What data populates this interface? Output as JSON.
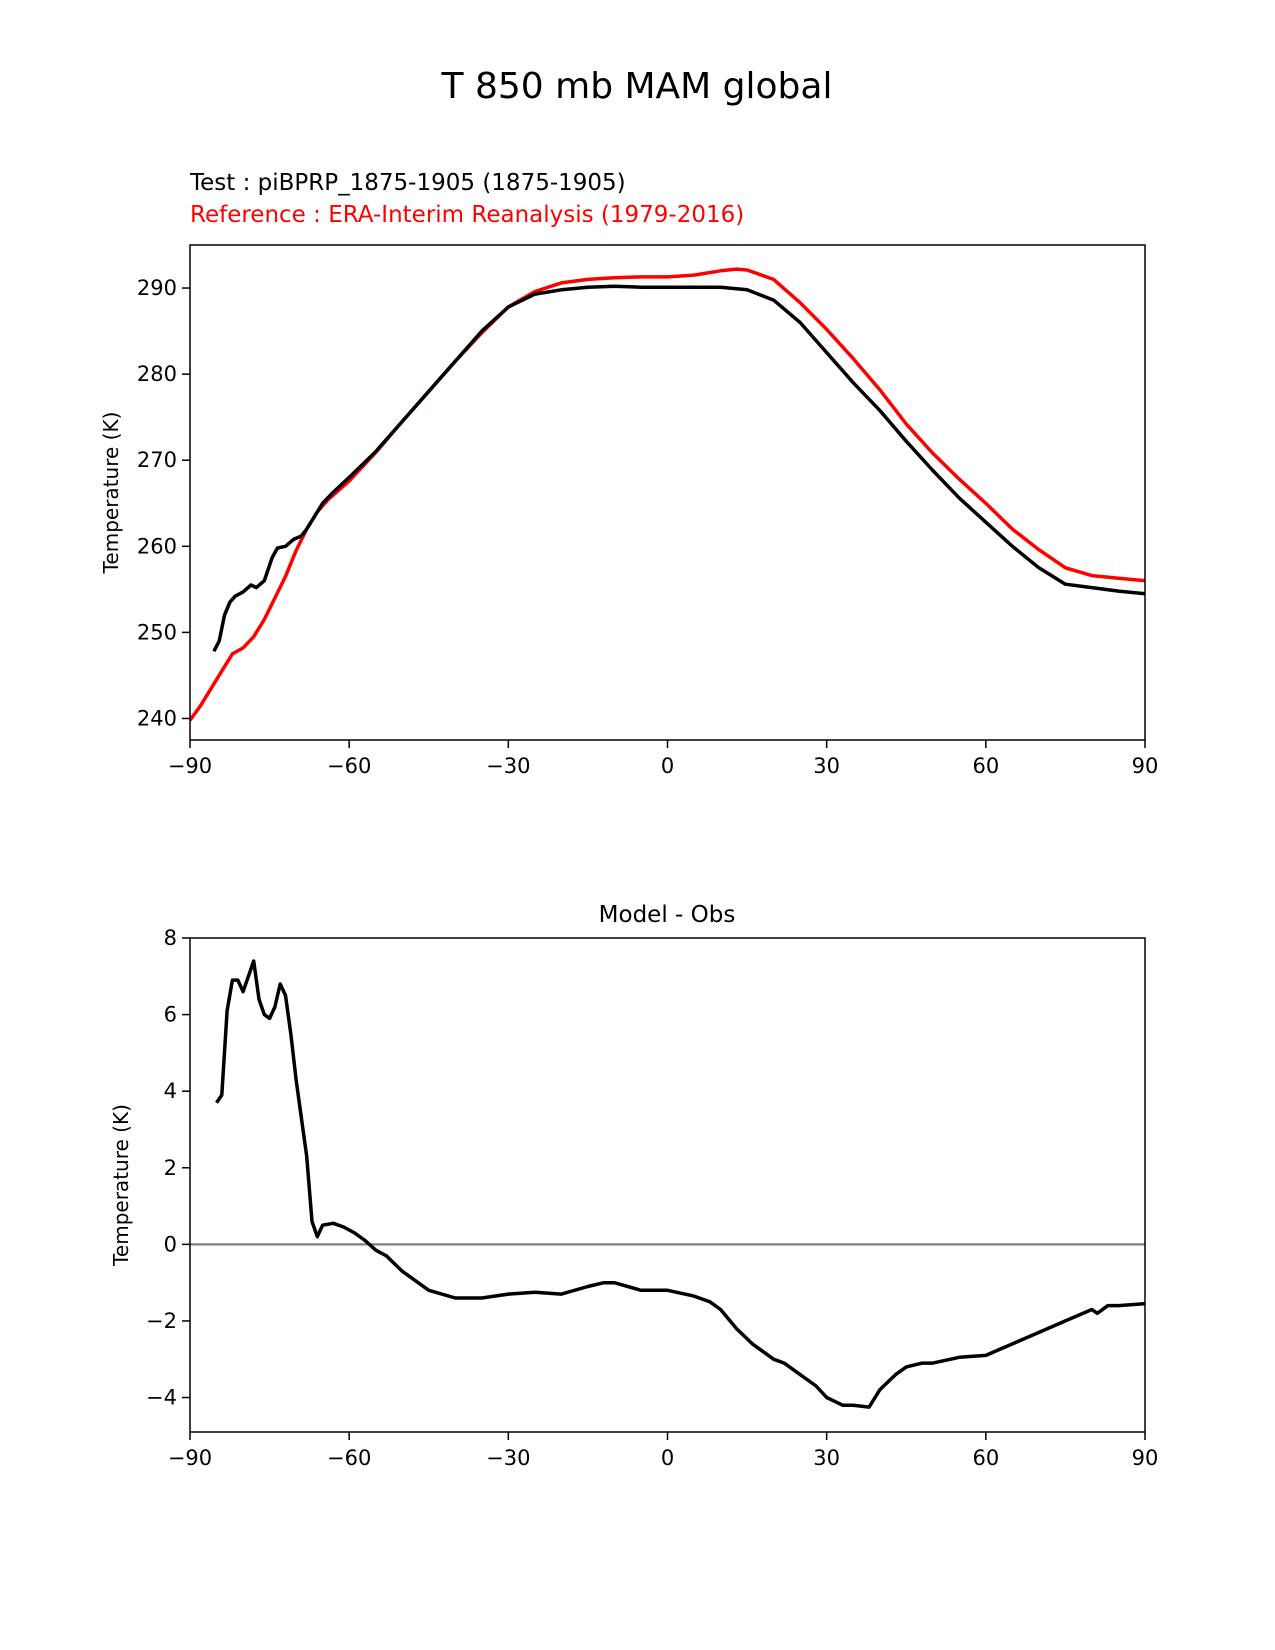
{
  "figure": {
    "title": "T 850 mb MAM global"
  },
  "chart_data": [
    {
      "type": "line",
      "test_label": "Test : piBPRP_1875-1905 (1875-1905)",
      "reference_label": "Reference : ERA-Interim Reanalysis (1979-2016)",
      "xlabel": "",
      "ylabel": "Temperature (K)",
      "xlim": [
        -90,
        90
      ],
      "ylim": [
        237.5,
        295
      ],
      "xticks": [
        -90,
        -60,
        -30,
        0,
        30,
        60,
        90
      ],
      "xtick_labels": [
        "−90",
        "−60",
        "−30",
        "0",
        "30",
        "60",
        "90"
      ],
      "yticks": [
        240,
        250,
        260,
        270,
        280,
        290
      ],
      "ytick_labels": [
        "240",
        "250",
        "260",
        "270",
        "280",
        "290"
      ],
      "colors": {
        "test": "#000000",
        "reference": "#ff0000"
      },
      "series": [
        {
          "name": "Test",
          "color": "#000000",
          "x": [
            -85.5,
            -84.5,
            -83.5,
            -82.5,
            -81.5,
            -80,
            -78.5,
            -77.5,
            -76,
            -74.5,
            -73.5,
            -72,
            -70.5,
            -69,
            -68,
            -67,
            -65,
            -63,
            -60,
            -55,
            -50,
            -45,
            -40,
            -35,
            -30,
            -25,
            -20,
            -15,
            -10,
            -5,
            0,
            5,
            10,
            15,
            20,
            25,
            30,
            35,
            40,
            45,
            50,
            55,
            60,
            65,
            70,
            75,
            80,
            85,
            90
          ],
          "values": [
            247.8,
            249,
            252,
            253.5,
            254.2,
            254.7,
            255.5,
            255.2,
            256,
            258.7,
            259.8,
            260,
            260.8,
            261.2,
            262,
            263,
            265,
            266.3,
            268,
            271,
            274.5,
            278,
            281.5,
            285,
            287.8,
            289.3,
            289.8,
            290.1,
            290.2,
            290.1,
            290.1,
            290.1,
            290.1,
            289.8,
            288.6,
            286,
            282.5,
            279,
            275.8,
            272.2,
            268.8,
            265.6,
            262.8,
            260,
            257.5,
            255.6,
            255.2,
            254.8,
            254.5
          ]
        },
        {
          "name": "Reference",
          "color": "#ff0000",
          "x": [
            -90,
            -88,
            -86,
            -84,
            -82,
            -80,
            -78,
            -76,
            -74,
            -72,
            -70,
            -68,
            -66,
            -64,
            -60,
            -55,
            -50,
            -45,
            -40,
            -35,
            -30,
            -25,
            -20,
            -15,
            -10,
            -5,
            0,
            5,
            10,
            13,
            15,
            20,
            25,
            30,
            35,
            40,
            45,
            50,
            55,
            60,
            65,
            70,
            75,
            80,
            85,
            90
          ],
          "values": [
            239.8,
            241.5,
            243.5,
            245.5,
            247.5,
            248.2,
            249.5,
            251.5,
            254,
            256.5,
            259.5,
            262,
            264,
            265.4,
            267.6,
            270.9,
            274.5,
            278,
            281.5,
            284.8,
            287.8,
            289.6,
            290.6,
            291,
            291.2,
            291.3,
            291.3,
            291.5,
            292,
            292.2,
            292.1,
            291,
            288.3,
            285.2,
            281.8,
            278.2,
            274.2,
            270.8,
            267.8,
            265,
            262,
            259.6,
            257.5,
            256.6,
            256.3,
            256
          ]
        }
      ]
    },
    {
      "type": "line",
      "title": "Model - Obs",
      "xlabel": "",
      "ylabel": "Temperature (K)",
      "xlim": [
        -90,
        90
      ],
      "ylim": [
        -4.9,
        8
      ],
      "xticks": [
        -90,
        -60,
        -30,
        0,
        30,
        60,
        90
      ],
      "xtick_labels": [
        "−90",
        "−60",
        "−30",
        "0",
        "30",
        "60",
        "90"
      ],
      "yticks": [
        -4,
        -2,
        0,
        2,
        4,
        6,
        8
      ],
      "ytick_labels": [
        "−4",
        "−2",
        "0",
        "2",
        "4",
        "6",
        "8"
      ],
      "zero_line_color": "#808080",
      "series": [
        {
          "name": "Model - Obs",
          "color": "#000000",
          "x": [
            -85,
            -84,
            -83,
            -82,
            -81,
            -80,
            -79,
            -78,
            -77,
            -76,
            -75,
            -74,
            -73,
            -72,
            -71,
            -70,
            -68,
            -67,
            -66,
            -65,
            -63,
            -61,
            -59,
            -57,
            -55,
            -53,
            -50,
            -45,
            -40,
            -35,
            -30,
            -25,
            -20,
            -15,
            -12,
            -10,
            -5,
            0,
            5,
            8,
            10,
            13,
            16,
            20,
            22,
            25,
            28,
            30,
            33,
            35,
            38,
            40,
            43,
            45,
            48,
            50,
            55,
            60,
            65,
            70,
            75,
            80,
            81,
            83,
            85,
            90
          ],
          "values": [
            3.7,
            3.9,
            6.1,
            6.9,
            6.9,
            6.6,
            7,
            7.4,
            6.4,
            6,
            5.9,
            6.2,
            6.8,
            6.5,
            5.5,
            4.3,
            2.3,
            0.6,
            0.2,
            0.5,
            0.55,
            0.45,
            0.3,
            0.1,
            -0.15,
            -0.3,
            -0.7,
            -1.2,
            -1.4,
            -1.4,
            -1.3,
            -1.25,
            -1.3,
            -1.1,
            -1,
            -1,
            -1.2,
            -1.2,
            -1.35,
            -1.5,
            -1.7,
            -2.2,
            -2.6,
            -3,
            -3.1,
            -3.4,
            -3.7,
            -4,
            -4.2,
            -4.2,
            -4.25,
            -3.8,
            -3.4,
            -3.2,
            -3.1,
            -3.1,
            -2.95,
            -2.9,
            -2.6,
            -2.3,
            -2,
            -1.7,
            -1.8,
            -1.6,
            -1.6,
            -1.55
          ]
        }
      ]
    }
  ]
}
